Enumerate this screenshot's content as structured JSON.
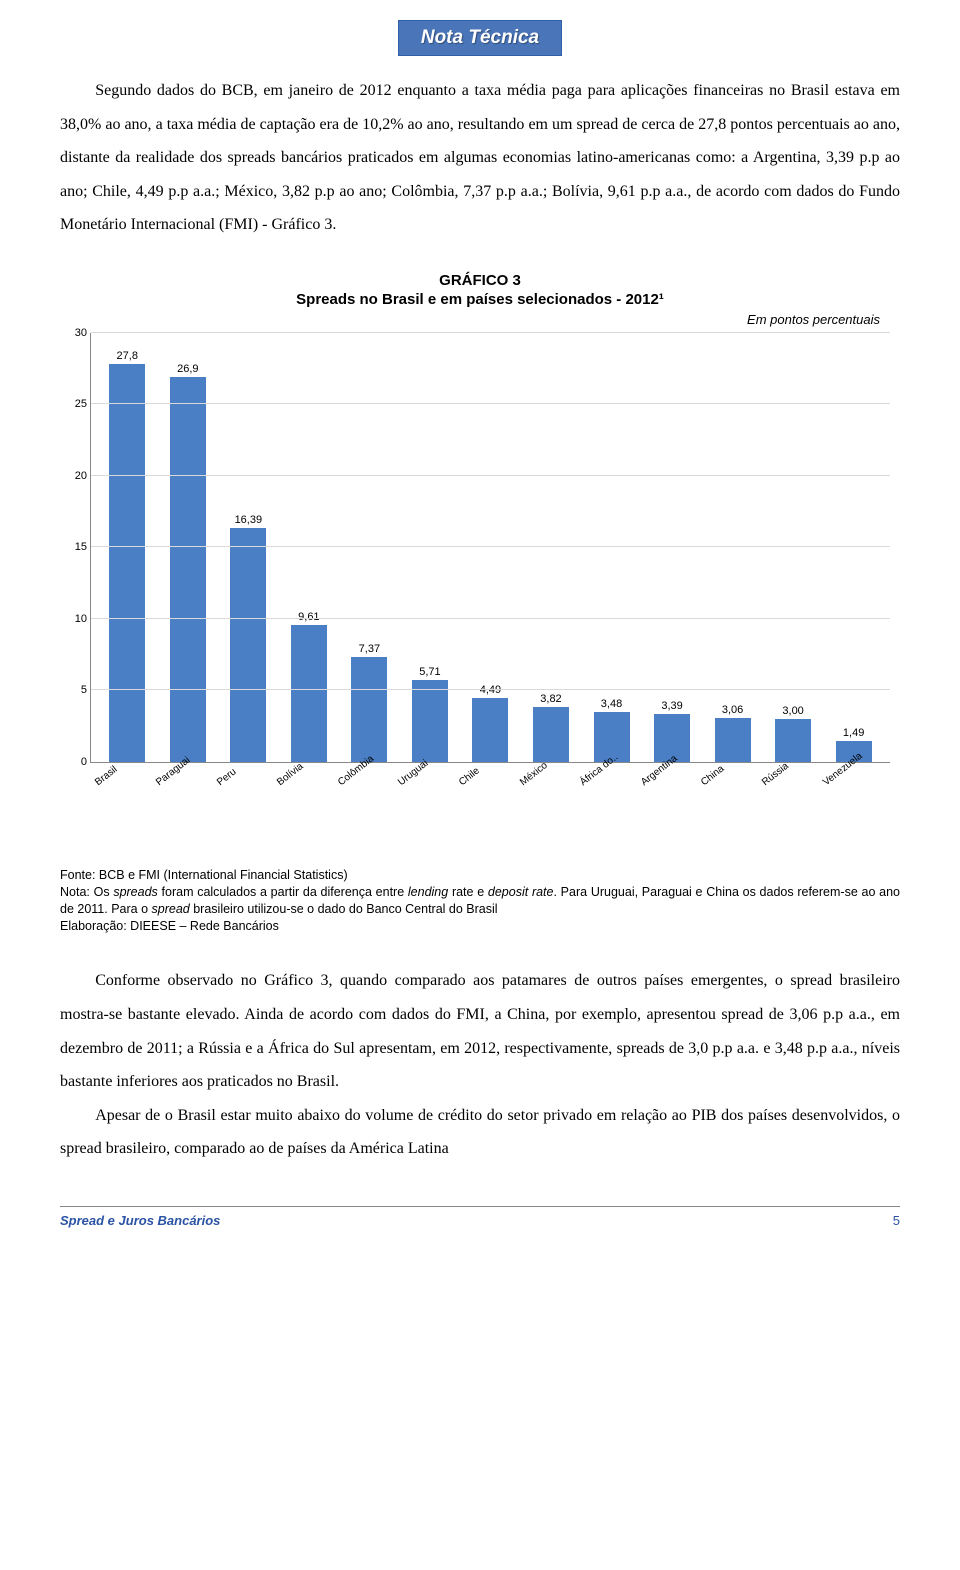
{
  "banner": {
    "label": "Nota Técnica"
  },
  "paragraph1": "Segundo dados do BCB, em janeiro de 2012 enquanto a taxa média paga para aplicações financeiras no Brasil estava em 38,0% ao ano, a taxa média de captação era de 10,2% ao ano, resultando em um spread de cerca de 27,8 pontos percentuais ao ano, distante da realidade dos spreads bancários praticados em algumas economias latino-americanas como: a Argentina, 3,39 p.p ao ano; Chile, 4,49 p.p a.a.; México, 3,82 p.p ao ano; Colômbia, 7,37 p.p a.a.; Bolívia, 9,61 p.p a.a., de acordo com dados do Fundo Monetário Internacional (FMI) - Gráfico 3.",
  "chart": {
    "title": "GRÁFICO 3",
    "subtitle": "Spreads no Brasil e em países selecionados - 2012¹",
    "unit_label": "Em pontos percentuais",
    "type": "bar",
    "ylim_max": 30,
    "ytick_step": 5,
    "yticks": [
      0,
      5,
      10,
      15,
      20,
      25,
      30
    ],
    "bar_color": "#4a7fc5",
    "grid_color": "#d9d9d9",
    "axis_color": "#888888",
    "background_color": "#ffffff",
    "value_fontsize": 11,
    "axis_fontsize": 11,
    "categories": [
      "Brasil",
      "Paraguai",
      "Peru",
      "Bolívia",
      "Colômbia",
      "Uruguai",
      "Chile",
      "México",
      "África do..",
      "Argentina",
      "China",
      "Rússia",
      "Venezuela"
    ],
    "values": [
      27.8,
      26.9,
      16.39,
      9.61,
      7.37,
      5.71,
      4.49,
      3.82,
      3.48,
      3.39,
      3.06,
      3.0,
      1.49
    ],
    "value_labels": [
      "27,8",
      "26,9",
      "16,39",
      "9,61",
      "7,37",
      "5,71",
      "4,49",
      "3,82",
      "3,48",
      "3,39",
      "3,06",
      "3,00",
      "1,49"
    ]
  },
  "source": {
    "line1": "Fonte: BCB e FMI (International Financial Statistics)",
    "line2_a": "Nota: Os ",
    "line2_b": "spreads",
    "line2_c": " foram calculados a partir da diferença entre ",
    "line2_d": "lending",
    "line2_e": " rate e ",
    "line2_f": "deposit rate",
    "line2_g": ". Para Uruguai, Paraguai e China os dados referem-se ao ano de 2011. Para o ",
    "line2_h": "spread",
    "line2_i": " brasileiro utilizou-se o dado do Banco Central do Brasil",
    "line3": "Elaboração: DIEESE – Rede Bancários"
  },
  "paragraph2": "Conforme observado no Gráfico 3, quando comparado aos patamares de outros países emergentes, o spread brasileiro mostra-se bastante elevado. Ainda de acordo com dados do FMI, a China, por exemplo, apresentou spread de 3,06 p.p a.a., em dezembro de 2011; a Rússia e a África do Sul apresentam, em 2012, respectivamente, spreads de 3,0 p.p a.a. e 3,48 p.p a.a., níveis bastante inferiores aos praticados no Brasil.",
  "paragraph3": "Apesar de o Brasil estar muito abaixo do volume de crédito do setor privado em relação ao PIB dos países desenvolvidos, o spread brasileiro, comparado ao de países da América Latina",
  "footer": {
    "title": "Spread e Juros Bancários",
    "page": "5"
  }
}
